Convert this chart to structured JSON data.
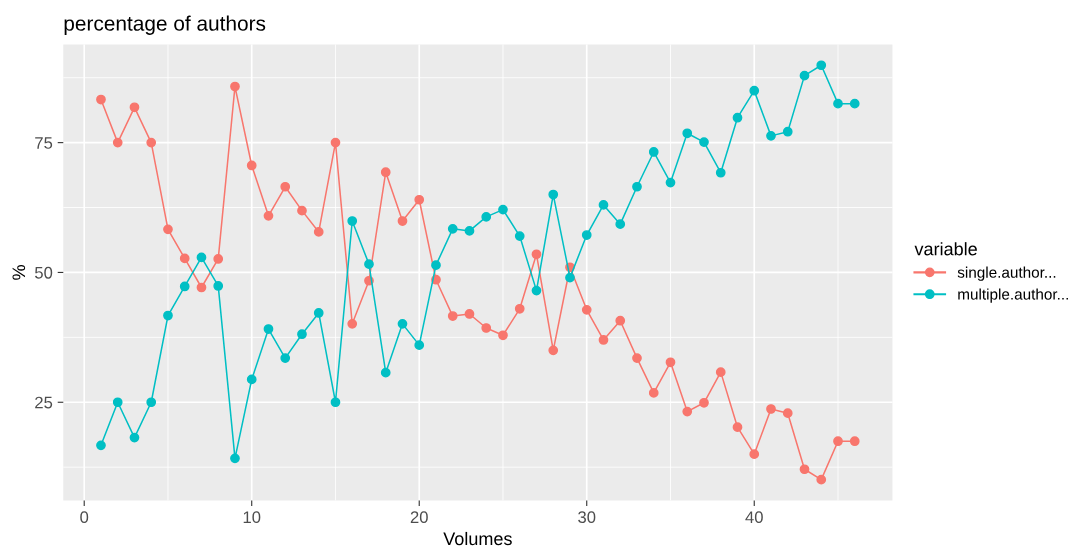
{
  "chart_data": {
    "type": "line",
    "title": "percentage of authors",
    "xlabel": "Volumes",
    "ylabel": "%",
    "legend_title": "variable",
    "x": [
      1,
      2,
      3,
      4,
      5,
      6,
      7,
      8,
      9,
      10,
      11,
      12,
      13,
      14,
      15,
      16,
      17,
      18,
      19,
      20,
      21,
      22,
      23,
      24,
      25,
      26,
      27,
      28,
      29,
      30,
      31,
      32,
      33,
      34,
      35,
      36,
      37,
      38,
      39,
      40,
      41,
      42,
      43,
      44,
      45,
      46
    ],
    "series": [
      {
        "name": "single.author...",
        "color": "#f8766d",
        "values": [
          83.3,
          75,
          81.8,
          75,
          58.3,
          52.7,
          47.1,
          52.6,
          85.8,
          70.6,
          60.9,
          66.5,
          61.9,
          57.8,
          75,
          40.1,
          48.4,
          69.3,
          59.9,
          64.0,
          48.6,
          41.6,
          42.0,
          39.3,
          37.9,
          43.0,
          53.5,
          35.0,
          51.0,
          42.8,
          37.0,
          40.7,
          33.5,
          26.8,
          32.7,
          23.2,
          24.9,
          30.8,
          20.2,
          15.0,
          23.7,
          22.9,
          12.1,
          10.1,
          17.5,
          17.5
        ]
      },
      {
        "name": "multiple.author...",
        "color": "#00bfc4",
        "values": [
          16.7,
          25,
          18.2,
          25,
          41.7,
          47.3,
          52.9,
          47.4,
          14.2,
          29.4,
          39.1,
          33.5,
          38.1,
          42.2,
          25,
          59.9,
          51.6,
          30.7,
          40.1,
          36.0,
          51.4,
          58.4,
          58.0,
          60.7,
          62.1,
          57.0,
          46.5,
          65.0,
          49.0,
          57.2,
          63.0,
          59.3,
          66.5,
          73.2,
          67.3,
          76.8,
          75.1,
          69.2,
          79.8,
          85.0,
          76.3,
          77.1,
          87.9,
          89.9,
          82.5,
          82.5
        ]
      }
    ],
    "xlim": [
      -1.25,
      48.25
    ],
    "xticks": [
      0,
      10,
      20,
      30,
      40
    ],
    "ylim": [
      6.1,
      93.9
    ],
    "yticks": [
      25,
      50,
      75
    ],
    "grid": true,
    "legend": "right",
    "marker": "circle",
    "line_style": "solid"
  }
}
